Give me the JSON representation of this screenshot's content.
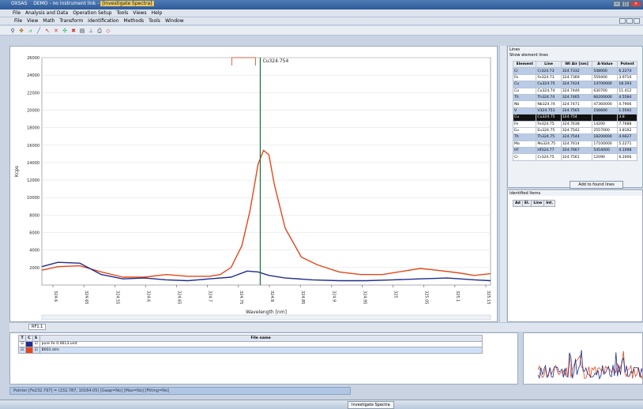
{
  "window": {
    "app": "OXSAS",
    "title": "DEMO - no instrument link -",
    "active_window": "[Investigate Spectra]"
  },
  "menu": [
    "File",
    "Analysis and Data",
    "Operation Setup",
    "Tools",
    "Views",
    "Help"
  ],
  "child_menu": [
    "File",
    "View",
    "Math",
    "Transform",
    "Identification",
    "Methods",
    "Tools",
    "Window"
  ],
  "toolbar_icons": [
    "zoom-icon",
    "pan-icon",
    "peak-icon",
    "line-icon",
    "cursor-icon",
    "marker-icon",
    "overlay-icon",
    "delete-icon",
    "print-icon",
    "settings-icon",
    "export-icon",
    "info-icon"
  ],
  "chart_data": {
    "type": "line",
    "marker_label": "Cu324.754",
    "xlabel": "Wavelength [nm]",
    "ylabel": "Kcps",
    "x_ticks": [
      "324.6",
      "324.65",
      "324.55",
      "324.6",
      "324.65",
      "324.7",
      "324.75",
      "324.8",
      "324.85",
      "324.9",
      "324.95",
      "325",
      "325.05",
      "325.1",
      "325.15"
    ],
    "y_ticks": [
      26000,
      24000,
      22000,
      20000,
      18000,
      16000,
      14000,
      12000,
      10000,
      8000,
      6000,
      4000,
      2000
    ],
    "ylim": [
      0,
      26000
    ],
    "xlim": [
      324.35,
      325.18
    ],
    "marker_x": 324.754,
    "series": [
      {
        "color": "#e2481b",
        "x": [
          324.35,
          324.38,
          324.42,
          324.46,
          324.5,
          324.54,
          324.58,
          324.62,
          324.66,
          324.68,
          324.7,
          324.72,
          324.735,
          324.75,
          324.76,
          324.77,
          324.78,
          324.8,
          324.83,
          324.86,
          324.9,
          324.94,
          324.98,
          325.02,
          325.05,
          325.08,
          325.12,
          325.15,
          325.18
        ],
        "y": [
          1700,
          2100,
          2200,
          1500,
          900,
          900,
          1200,
          1000,
          1000,
          1200,
          2000,
          4500,
          8500,
          13800,
          15400,
          14900,
          11500,
          6500,
          3200,
          2300,
          1500,
          1200,
          1200,
          1600,
          1900,
          1700,
          1400,
          1100,
          1300
        ]
      },
      {
        "color": "#1f2d8c",
        "x": [
          324.35,
          324.38,
          324.42,
          324.46,
          324.5,
          324.54,
          324.58,
          324.62,
          324.66,
          324.7,
          324.73,
          324.75,
          324.77,
          324.8,
          324.85,
          324.9,
          324.95,
          325,
          325.05,
          325.1,
          325.15,
          325.18
        ],
        "y": [
          2100,
          2600,
          2500,
          1200,
          700,
          800,
          600,
          500,
          700,
          900,
          1600,
          1500,
          1100,
          800,
          600,
          500,
          500,
          600,
          700,
          800,
          600,
          500
        ]
      }
    ]
  },
  "lines_panel": {
    "title": "Lines",
    "subtitle": "Show element lines",
    "columns": [
      "Element",
      "Line",
      "WI Air [nm]",
      "A-Value",
      "Potent"
    ],
    "rows": [
      [
        "Cr",
        "Cr324.73",
        "324.7332",
        "548000",
        "6.2274"
      ],
      [
        "Fe",
        "Fe324.73",
        "324.7369",
        "559400",
        "3.9710"
      ],
      [
        "Cu",
        "Cu324.75",
        "324.7424",
        "14700000",
        "18.293"
      ],
      [
        "Co",
        "Co324.74",
        "324.7446",
        "630700",
        "11.412"
      ],
      [
        "Th",
        "Th324.74",
        "324.7465",
        "66200000",
        "4.5584"
      ],
      [
        "Nb",
        "Nb324.74",
        "324.7471",
        "47360000",
        "4.7906"
      ],
      [
        "V",
        "V324.751",
        "324.7565",
        "156600",
        "1.5592"
      ],
      [
        "Cu",
        "Cu324.75",
        "324.754",
        "",
        "3.8"
      ],
      [
        "Fe",
        "Fe324.75",
        "324.7638",
        "14200",
        "7.7688"
      ],
      [
        "Eu",
        "Eu324.75",
        "324.7542",
        "2557000",
        "3.8192"
      ],
      [
        "Th",
        "Th324.75",
        "324.7544",
        "18200000",
        "4.6627"
      ],
      [
        "Mo",
        "Mo324.75",
        "324.7614",
        "17100000",
        "5.2271"
      ],
      [
        "Hf",
        "Hf324.77",
        "324.7667",
        "5454000",
        "4.1098"
      ],
      [
        "Cr",
        "Cr324.75",
        "324.7561",
        "12090",
        "6.2006"
      ]
    ],
    "add_button": "Add to found lines"
  },
  "identified_panel": {
    "title": "Identified Items",
    "columns": [
      "Ad",
      "El.",
      "Line",
      "Int."
    ]
  },
  "tab": "RF1.1",
  "file_table": {
    "columns": [
      "T",
      "C",
      "S",
      "File name"
    ],
    "rows": [
      {
        "name": "pure Fe 0.0613.unit"
      },
      {
        "name": "B001.stm"
      }
    ]
  },
  "side_labels": {
    "files": "Information",
    "view": "Overview"
  },
  "status": "Pointer [Fe232.797] = (232.787, 10164.05) [Gaap=No] [Max=No] [Fitting=No]",
  "taskbar_item": "Investigate Spectra"
}
